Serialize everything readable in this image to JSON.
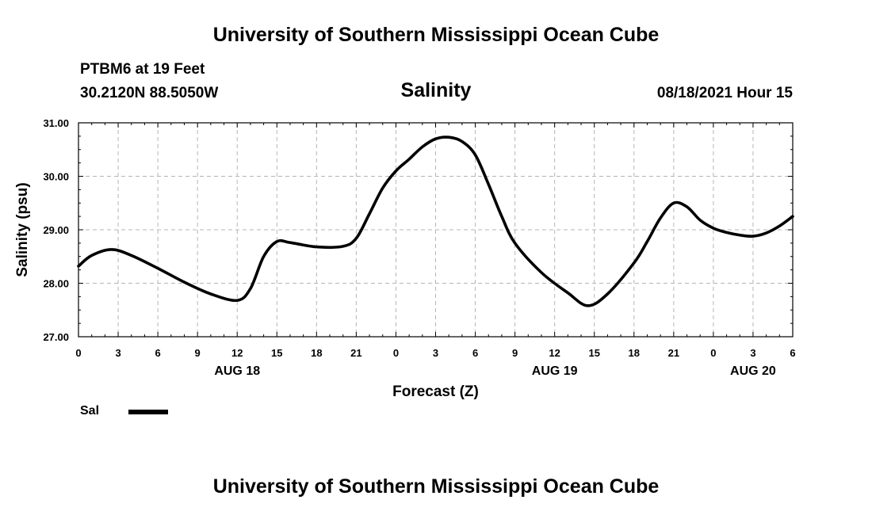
{
  "page_title_top": "University of Southern Mississippi Ocean Cube",
  "page_title_bottom": "University of Southern Mississippi Ocean Cube",
  "station": "PTBM6 at 19 Feet",
  "coordinates": "30.2120N  88.5050W",
  "datetime": "08/18/2021 Hour 15",
  "chart_data": {
    "type": "line",
    "title": "Salinity",
    "xlabel": "Forecast (Z)",
    "ylabel": "Salinity (psu)",
    "xlim": [
      0,
      54
    ],
    "ylim": [
      27,
      31
    ],
    "y_ticks": [
      27,
      28,
      29,
      30,
      31
    ],
    "y_tick_labels": [
      "27.00",
      "28.00",
      "29.00",
      "30.00",
      "31.00"
    ],
    "x_ticks": [
      0,
      3,
      6,
      9,
      12,
      15,
      18,
      21,
      24,
      27,
      30,
      33,
      36,
      39,
      42,
      45,
      48,
      51,
      54
    ],
    "x_tick_labels": [
      "0",
      "3",
      "6",
      "9",
      "12",
      "15",
      "18",
      "21",
      "0",
      "3",
      "6",
      "9",
      "12",
      "15",
      "18",
      "21",
      "0",
      "3",
      "6"
    ],
    "date_labels": [
      {
        "hour": 12,
        "label": "AUG 18"
      },
      {
        "hour": 36,
        "label": "AUG 19"
      },
      {
        "hour": 51,
        "label": "AUG 20"
      }
    ],
    "grid": true,
    "series": [
      {
        "name": "Sal",
        "color": "#000000",
        "x": [
          0,
          1,
          2.5,
          4,
          6,
          8,
          10,
          12,
          13,
          14,
          15,
          16,
          18,
          20,
          21,
          22,
          23,
          24,
          25,
          26,
          27,
          28,
          29,
          30,
          31,
          32,
          33,
          35,
          37,
          38.5,
          40,
          42,
          43,
          44,
          45,
          46,
          47,
          48,
          49,
          50,
          51,
          52,
          53,
          54
        ],
        "values": [
          28.32,
          28.52,
          28.63,
          28.52,
          28.28,
          28.02,
          27.8,
          27.68,
          27.9,
          28.5,
          28.78,
          28.76,
          28.68,
          28.69,
          28.84,
          29.3,
          29.78,
          30.1,
          30.32,
          30.55,
          30.7,
          30.73,
          30.65,
          30.4,
          29.85,
          29.25,
          28.75,
          28.2,
          27.82,
          27.58,
          27.8,
          28.38,
          28.78,
          29.22,
          29.5,
          29.43,
          29.18,
          29.03,
          28.95,
          28.9,
          28.88,
          28.94,
          29.07,
          29.25
        ]
      }
    ],
    "legend": [
      {
        "label": "Sal"
      }
    ]
  }
}
